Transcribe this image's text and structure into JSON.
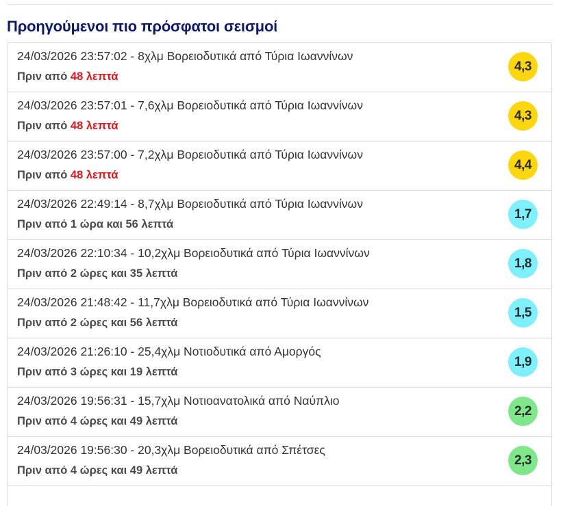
{
  "section": {
    "title": "Προηγούμενοι πιο πρόσφατοι σεισμοί"
  },
  "colors": {
    "title": "#0e1a6b",
    "recent_highlight": "#e8141b",
    "mag_yellow": "#fcd70f",
    "mag_cyan": "#7ef0fb",
    "mag_green": "#7ee78a"
  },
  "earthquakes": [
    {
      "line": "24/03/2026 23:57:02 - 8χλμ Βορειοδυτικά από Τύρια Ιωαννίνων",
      "ago_prefix": "Πριν από ",
      "ago_highlight": "48 λεπτά",
      "ago_text": "",
      "magnitude": "4,3",
      "mag_color": "#fcd70f"
    },
    {
      "line": "24/03/2026 23:57:01 - 7,6χλμ Βορειοδυτικά από Τύρια Ιωαννίνων",
      "ago_prefix": "Πριν από ",
      "ago_highlight": "48 λεπτά",
      "ago_text": "",
      "magnitude": "4,3",
      "mag_color": "#fcd70f"
    },
    {
      "line": "24/03/2026 23:57:00 - 7,2χλμ Βορειοδυτικά από Τύρια Ιωαννίνων",
      "ago_prefix": "Πριν από ",
      "ago_highlight": "48 λεπτά",
      "ago_text": "",
      "magnitude": "4,4",
      "mag_color": "#fcd70f"
    },
    {
      "line": "24/03/2026 22:49:14 - 8,7χλμ Βορειοδυτικά από Τύρια Ιωαννίνων",
      "ago_prefix": "",
      "ago_highlight": "",
      "ago_text": "Πριν από 1 ώρα και 56 λεπτά",
      "magnitude": "1,7",
      "mag_color": "#7ef0fb"
    },
    {
      "line": "24/03/2026 22:10:34 - 10,2χλμ Βορειοδυτικά από Τύρια Ιωαννίνων",
      "ago_prefix": "",
      "ago_highlight": "",
      "ago_text": "Πριν από 2 ώρες και 35 λεπτά",
      "magnitude": "1,8",
      "mag_color": "#7ef0fb"
    },
    {
      "line": "24/03/2026 21:48:42 - 11,7χλμ Βορειοδυτικά από Τύρια Ιωαννίνων",
      "ago_prefix": "",
      "ago_highlight": "",
      "ago_text": "Πριν από 2 ώρες και 56 λεπτά",
      "magnitude": "1,5",
      "mag_color": "#7ef0fb"
    },
    {
      "line": "24/03/2026 21:26:10 - 25,4χλμ Νοτιοδυτικά από Αμοργός",
      "ago_prefix": "",
      "ago_highlight": "",
      "ago_text": "Πριν από 3 ώρες και 19 λεπτά",
      "magnitude": "1,9",
      "mag_color": "#7ef0fb"
    },
    {
      "line": "24/03/2026 19:56:31 - 15,7χλμ Νοτιοανατολικά από Ναύπλιο",
      "ago_prefix": "",
      "ago_highlight": "",
      "ago_text": "Πριν από 4 ώρες και 49 λεπτά",
      "magnitude": "2,2",
      "mag_color": "#7ee78a"
    },
    {
      "line": "24/03/2026 19:56:30 - 20,3χλμ Βορειοδυτικά από Σπέτσες",
      "ago_prefix": "",
      "ago_highlight": "",
      "ago_text": "Πριν από 4 ώρες και 49 λεπτά",
      "magnitude": "2,3",
      "mag_color": "#7ee78a"
    }
  ]
}
